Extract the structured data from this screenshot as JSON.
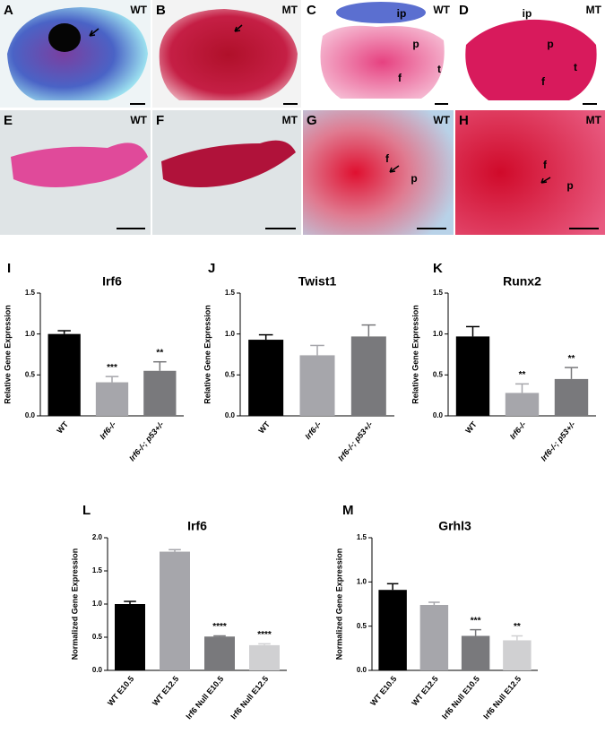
{
  "photos": [
    {
      "letter": "A",
      "genotype": "WT"
    },
    {
      "letter": "B",
      "genotype": "MT"
    },
    {
      "letter": "C",
      "genotype": "WT",
      "labels": [
        "ip",
        "p",
        "f",
        "t"
      ]
    },
    {
      "letter": "D",
      "genotype": "MT",
      "labels": [
        "ip",
        "p",
        "f",
        "t"
      ]
    },
    {
      "letter": "E",
      "genotype": "WT"
    },
    {
      "letter": "F",
      "genotype": "MT"
    },
    {
      "letter": "G",
      "genotype": "WT",
      "labels": [
        "f",
        "p"
      ]
    },
    {
      "letter": "H",
      "genotype": "MT",
      "labels": [
        "f",
        "p"
      ]
    }
  ],
  "chart_data": [
    {
      "type": "bar",
      "panel": "I",
      "title": "Irf6",
      "y_label": "Relative Gene Expression",
      "categories": [
        "WT",
        "Irf6-/-",
        "Irf6-/-; p53+/-"
      ],
      "values": [
        1.0,
        0.41,
        0.55
      ],
      "errors": [
        0.04,
        0.07,
        0.11
      ],
      "colors": [
        "#000000",
        "#a6a6ab",
        "#79797c"
      ],
      "annotations": [
        null,
        "***",
        "**"
      ],
      "ylim": [
        0,
        1.5
      ],
      "yticks": [
        {
          "value": 0,
          "label": "0.0"
        },
        {
          "value": 0.5,
          "label": "0.5"
        },
        {
          "value": 1,
          "label": "1.0"
        },
        {
          "value": 1.5,
          "label": "1.5"
        }
      ]
    },
    {
      "type": "bar",
      "panel": "J",
      "title": "Twist1",
      "y_label": "Relative Gene Expression",
      "categories": [
        "WT",
        "Irf6-/-",
        "Irf6-/-; p53+/-"
      ],
      "values": [
        0.93,
        0.74,
        0.97
      ],
      "errors": [
        0.06,
        0.12,
        0.14
      ],
      "colors": [
        "#000000",
        "#a6a6ab",
        "#79797c"
      ],
      "ylim": [
        0,
        1.5
      ],
      "yticks": [
        {
          "value": 0,
          "label": "0.0"
        },
        {
          "value": 0.5,
          "label": "0.5"
        },
        {
          "value": 1,
          "label": "1.0"
        },
        {
          "value": 1.5,
          "label": "1.5"
        }
      ]
    },
    {
      "type": "bar",
      "panel": "K",
      "title": "Runx2",
      "y_label": "Relative Gene Expression",
      "categories": [
        "WT",
        "Irf6-/-",
        "Irf6-/-; p53+/-"
      ],
      "values": [
        0.97,
        0.28,
        0.45
      ],
      "errors": [
        0.12,
        0.11,
        0.14
      ],
      "colors": [
        "#000000",
        "#a6a6ab",
        "#79797c"
      ],
      "annotations": [
        null,
        "**",
        "**"
      ],
      "ylim": [
        0,
        1.5
      ],
      "yticks": [
        {
          "value": 0,
          "label": "0.0"
        },
        {
          "value": 0.5,
          "label": "0.5"
        },
        {
          "value": 1,
          "label": "1.0"
        },
        {
          "value": 1.5,
          "label": "1.5"
        }
      ]
    },
    {
      "type": "bar",
      "panel": "L",
      "title": "Irf6",
      "y_label": "Normalized Gene Expression",
      "categories": [
        "WT E10.5",
        "WT E12.5",
        "Irf6 Null E10.5",
        "Irf6 Null  E12.5"
      ],
      "values": [
        1.0,
        1.79,
        0.51,
        0.38
      ],
      "errors": [
        0.04,
        0.03,
        0.01,
        0.02
      ],
      "colors": [
        "#000000",
        "#a6a6ab",
        "#79797c",
        "#d0d0d2"
      ],
      "annotations": [
        null,
        null,
        "****",
        "****"
      ],
      "ylim": [
        0,
        2
      ],
      "yticks": [
        {
          "value": 0,
          "label": "0.0"
        },
        {
          "value": 0.5,
          "label": "0.5"
        },
        {
          "value": 1,
          "label": "1.0"
        },
        {
          "value": 1.5,
          "label": "1.5"
        },
        {
          "value": 2,
          "label": "2.0"
        }
      ]
    },
    {
      "type": "bar",
      "panel": "M",
      "title": "Grhl3",
      "y_label": "Normalized Gene Expression",
      "categories": [
        "WT E10.5",
        "WT E12.5",
        "Irf6 Null E10.5",
        "Irf6 Null  E12.5"
      ],
      "values": [
        0.91,
        0.74,
        0.39,
        0.34
      ],
      "errors": [
        0.07,
        0.03,
        0.07,
        0.05
      ],
      "colors": [
        "#000000",
        "#a6a6ab",
        "#79797c",
        "#d0d0d2"
      ],
      "annotations": [
        null,
        null,
        "***",
        "**"
      ],
      "ylim": [
        0,
        1.5
      ],
      "yticks": [
        {
          "value": 0,
          "label": "0.0"
        },
        {
          "value": 0.5,
          "label": "0.5"
        },
        {
          "value": 1,
          "label": "1.0"
        },
        {
          "value": 1.5,
          "label": "1.5"
        }
      ]
    }
  ]
}
